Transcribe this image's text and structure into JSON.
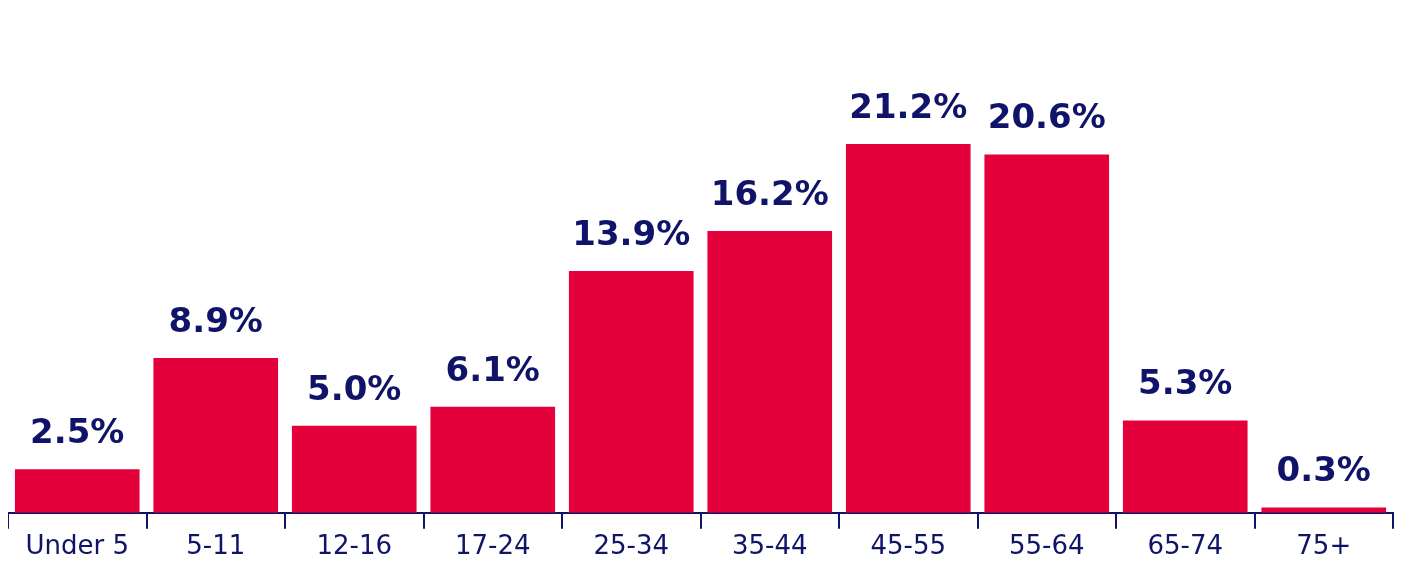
{
  "chart_data": {
    "type": "bar",
    "categories": [
      "Under 5",
      "5-11",
      "12-16",
      "17-24",
      "25-34",
      "35-44",
      "45-55",
      "55-64",
      "65-74",
      "75+"
    ],
    "values": [
      2.5,
      8.9,
      5.0,
      6.1,
      13.9,
      16.2,
      21.2,
      20.6,
      5.3,
      0.3
    ],
    "value_labels": [
      "2.5%",
      "8.9%",
      "5.0%",
      "6.1%",
      "13.9%",
      "16.2%",
      "21.2%",
      "20.6%",
      "5.3%",
      "0.3%"
    ],
    "color": "#e4003a",
    "grid": false,
    "legend": false
  }
}
